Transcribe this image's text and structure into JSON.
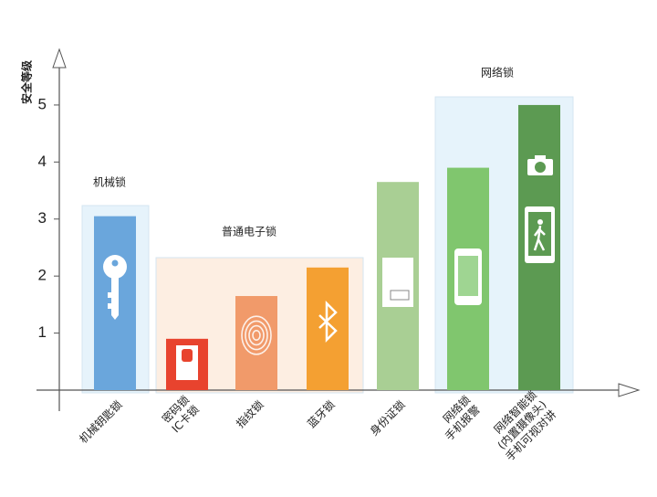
{
  "chart_data": {
    "type": "bar",
    "y_label": "安全等级",
    "categories": [
      [
        "机械钥匙锁"
      ],
      [
        "密码锁",
        "IC卡锁"
      ],
      [
        "指纹锁"
      ],
      [
        "蓝牙锁"
      ],
      [
        "身份证锁"
      ],
      [
        "网络锁",
        "手机报警"
      ],
      [
        "网络智能锁",
        "(内置摄像头)",
        "手机可视对讲"
      ]
    ],
    "values": [
      3.05,
      0.9,
      1.65,
      2.15,
      3.65,
      3.9,
      5.0
    ],
    "colors": [
      "#6aa6dc",
      "#e8432e",
      "#f19a6a",
      "#f4a032",
      "#a9cf94",
      "#80c66e",
      "#5c9a52"
    ],
    "annotations": [
      "机械锁",
      "普通电子锁",
      "网络锁"
    ],
    "ylim": [
      0,
      5.8
    ],
    "yticks": [
      1,
      2,
      3,
      4,
      5
    ]
  }
}
